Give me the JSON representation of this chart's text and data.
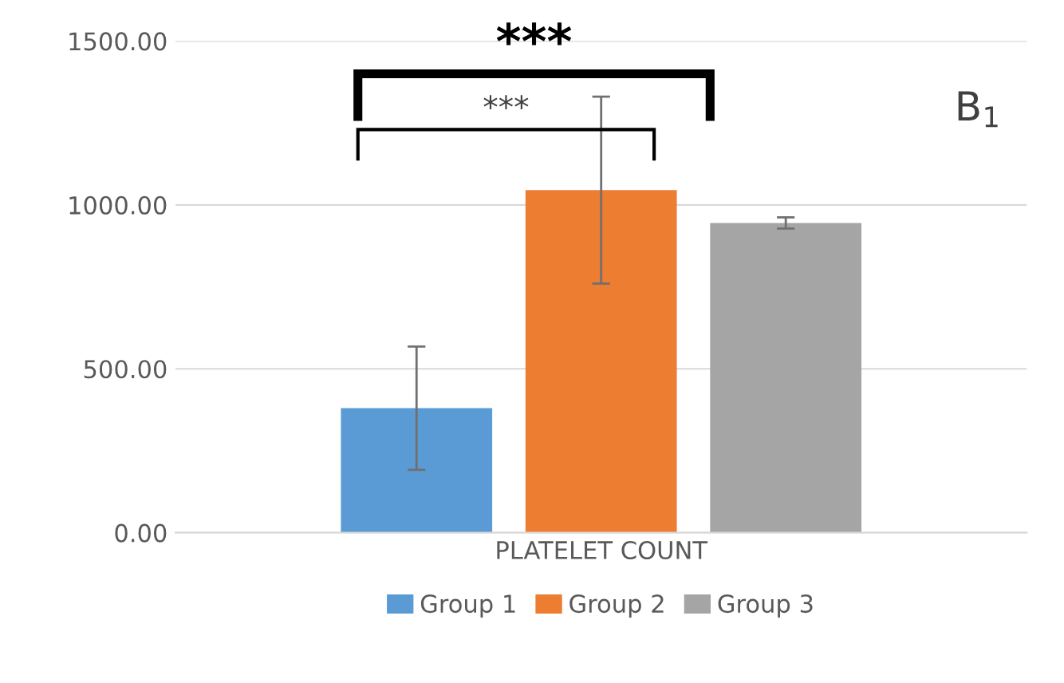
{
  "chart_data": {
    "type": "bar",
    "categories": [
      "PLATELET COUNT"
    ],
    "series": [
      {
        "name": "Group 1",
        "color": "#5b9bd5",
        "values": [
          380
        ],
        "errors": [
          188
        ]
      },
      {
        "name": "Group 2",
        "color": "#ed7d31",
        "values": [
          1045
        ],
        "errors": [
          285
        ]
      },
      {
        "name": "Group 3",
        "color": "#a5a5a5",
        "values": [
          945
        ],
        "errors": [
          17
        ]
      }
    ],
    "ylim": [
      0,
      1500
    ],
    "yticks": [
      {
        "value": 0,
        "label": "0.00"
      },
      {
        "value": 500,
        "label": "500.00"
      },
      {
        "value": 1000,
        "label": "1000.00"
      },
      {
        "value": 1500,
        "label": "1500.00"
      }
    ],
    "grid": "y",
    "legend": "bottom",
    "annotations": [
      "***",
      "***",
      "B$_{1}$"
    ]
  }
}
